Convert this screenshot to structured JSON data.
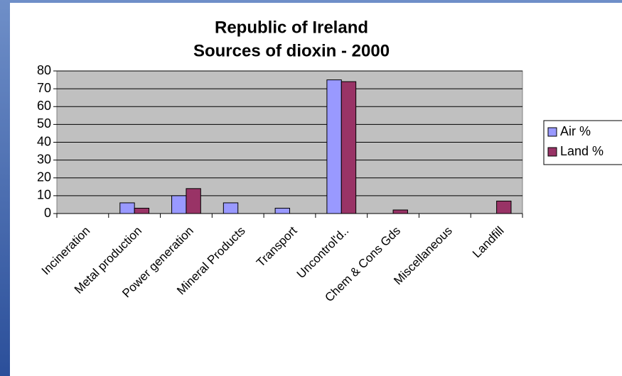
{
  "chart_data": {
    "type": "bar",
    "title": "Republic of Ireland",
    "subtitle": "Sources of dioxin - 2000",
    "categories": [
      "Incineration",
      "Metal production",
      "Power generation",
      "Mineral Products",
      "Transport",
      "Uncontrol'd..",
      "Chem & Cons Gds",
      "Miscellaneous",
      "Landfill"
    ],
    "series": [
      {
        "name": "Air %",
        "color": "#9999ff",
        "values": [
          0,
          6,
          10,
          6,
          3,
          75,
          0,
          0,
          0
        ]
      },
      {
        "name": "Land %",
        "color": "#993366",
        "values": [
          0,
          3,
          14,
          0,
          0,
          74,
          2,
          0,
          7
        ]
      }
    ],
    "ylim": [
      0,
      80
    ],
    "yticks": [
      0,
      10,
      20,
      30,
      40,
      50,
      60,
      70,
      80
    ],
    "grid": true,
    "legend": "right"
  }
}
